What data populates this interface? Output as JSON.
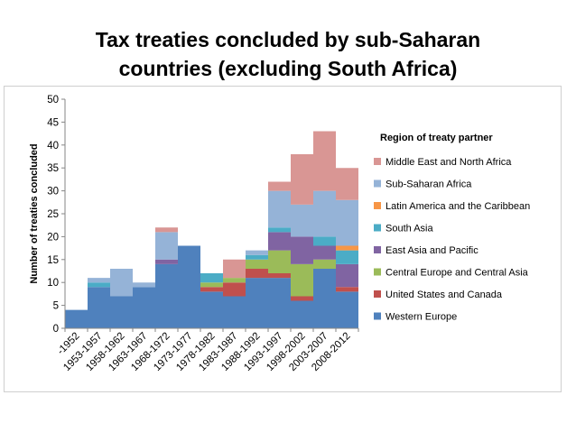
{
  "chart_data": {
    "type": "area",
    "title_line1": "Tax treaties concluded by sub-Saharan",
    "title_line2": "countries (excluding South Africa)",
    "ylabel": "Number of treaties concluded",
    "xlabel": "",
    "ylim": [
      0,
      50
    ],
    "yticks": [
      0,
      5,
      10,
      15,
      20,
      25,
      30,
      35,
      40,
      45,
      50
    ],
    "grid": false,
    "legend_title": "Region of treaty partner",
    "legend_position": "right",
    "categories": [
      "-1952",
      "1953-1957",
      "1958-1962",
      "1963-1967",
      "1968-1972",
      "1973-1977",
      "1978-1982",
      "1983-1987",
      "1988-1992",
      "1993-1997",
      "1998-2002",
      "2003-2007",
      "2008-2012"
    ],
    "series": [
      {
        "name": "Western Europe",
        "color": "#4F81BD",
        "values": [
          4,
          9,
          7,
          9,
          14,
          18,
          8,
          7,
          11,
          11,
          6,
          13,
          8
        ]
      },
      {
        "name": "United States and Canada",
        "color": "#C0504D",
        "values": [
          0,
          0,
          0,
          0,
          0,
          0,
          1,
          3,
          2,
          1,
          1,
          0,
          1
        ]
      },
      {
        "name": "Central Europe and Central Asia",
        "color": "#9BBB59",
        "values": [
          0,
          0,
          0,
          0,
          0,
          0,
          1,
          1,
          2,
          5,
          7,
          2,
          0
        ]
      },
      {
        "name": "East Asia and Pacific",
        "color": "#8064A2",
        "values": [
          0,
          0,
          0,
          0,
          1,
          0,
          0,
          0,
          0,
          4,
          6,
          3,
          5
        ]
      },
      {
        "name": "South Asia",
        "color": "#4BACC6",
        "values": [
          0,
          1,
          0,
          0,
          0,
          0,
          2,
          0,
          1,
          1,
          0,
          2,
          3
        ]
      },
      {
        "name": "Latin America and the Caribbean",
        "color": "#F79646",
        "values": [
          0,
          0,
          0,
          0,
          0,
          0,
          0,
          0,
          0,
          0,
          0,
          0,
          1
        ]
      },
      {
        "name": "Sub-Saharan Africa",
        "color": "#95B3D7",
        "values": [
          0,
          1,
          6,
          1,
          6,
          0,
          0,
          0,
          1,
          8,
          7,
          10,
          10
        ]
      },
      {
        "name": "Middle East and North Africa",
        "color": "#D99694",
        "values": [
          0,
          0,
          0,
          0,
          1,
          0,
          0,
          4,
          0,
          2,
          11,
          13,
          7
        ]
      }
    ],
    "legend_order": [
      "Middle East and North Africa",
      "Sub-Saharan Africa",
      "Latin America and the Caribbean",
      "South Asia",
      "East Asia and Pacific",
      "Central Europe and Central Asia",
      "United States and Canada",
      "Western Europe"
    ]
  }
}
